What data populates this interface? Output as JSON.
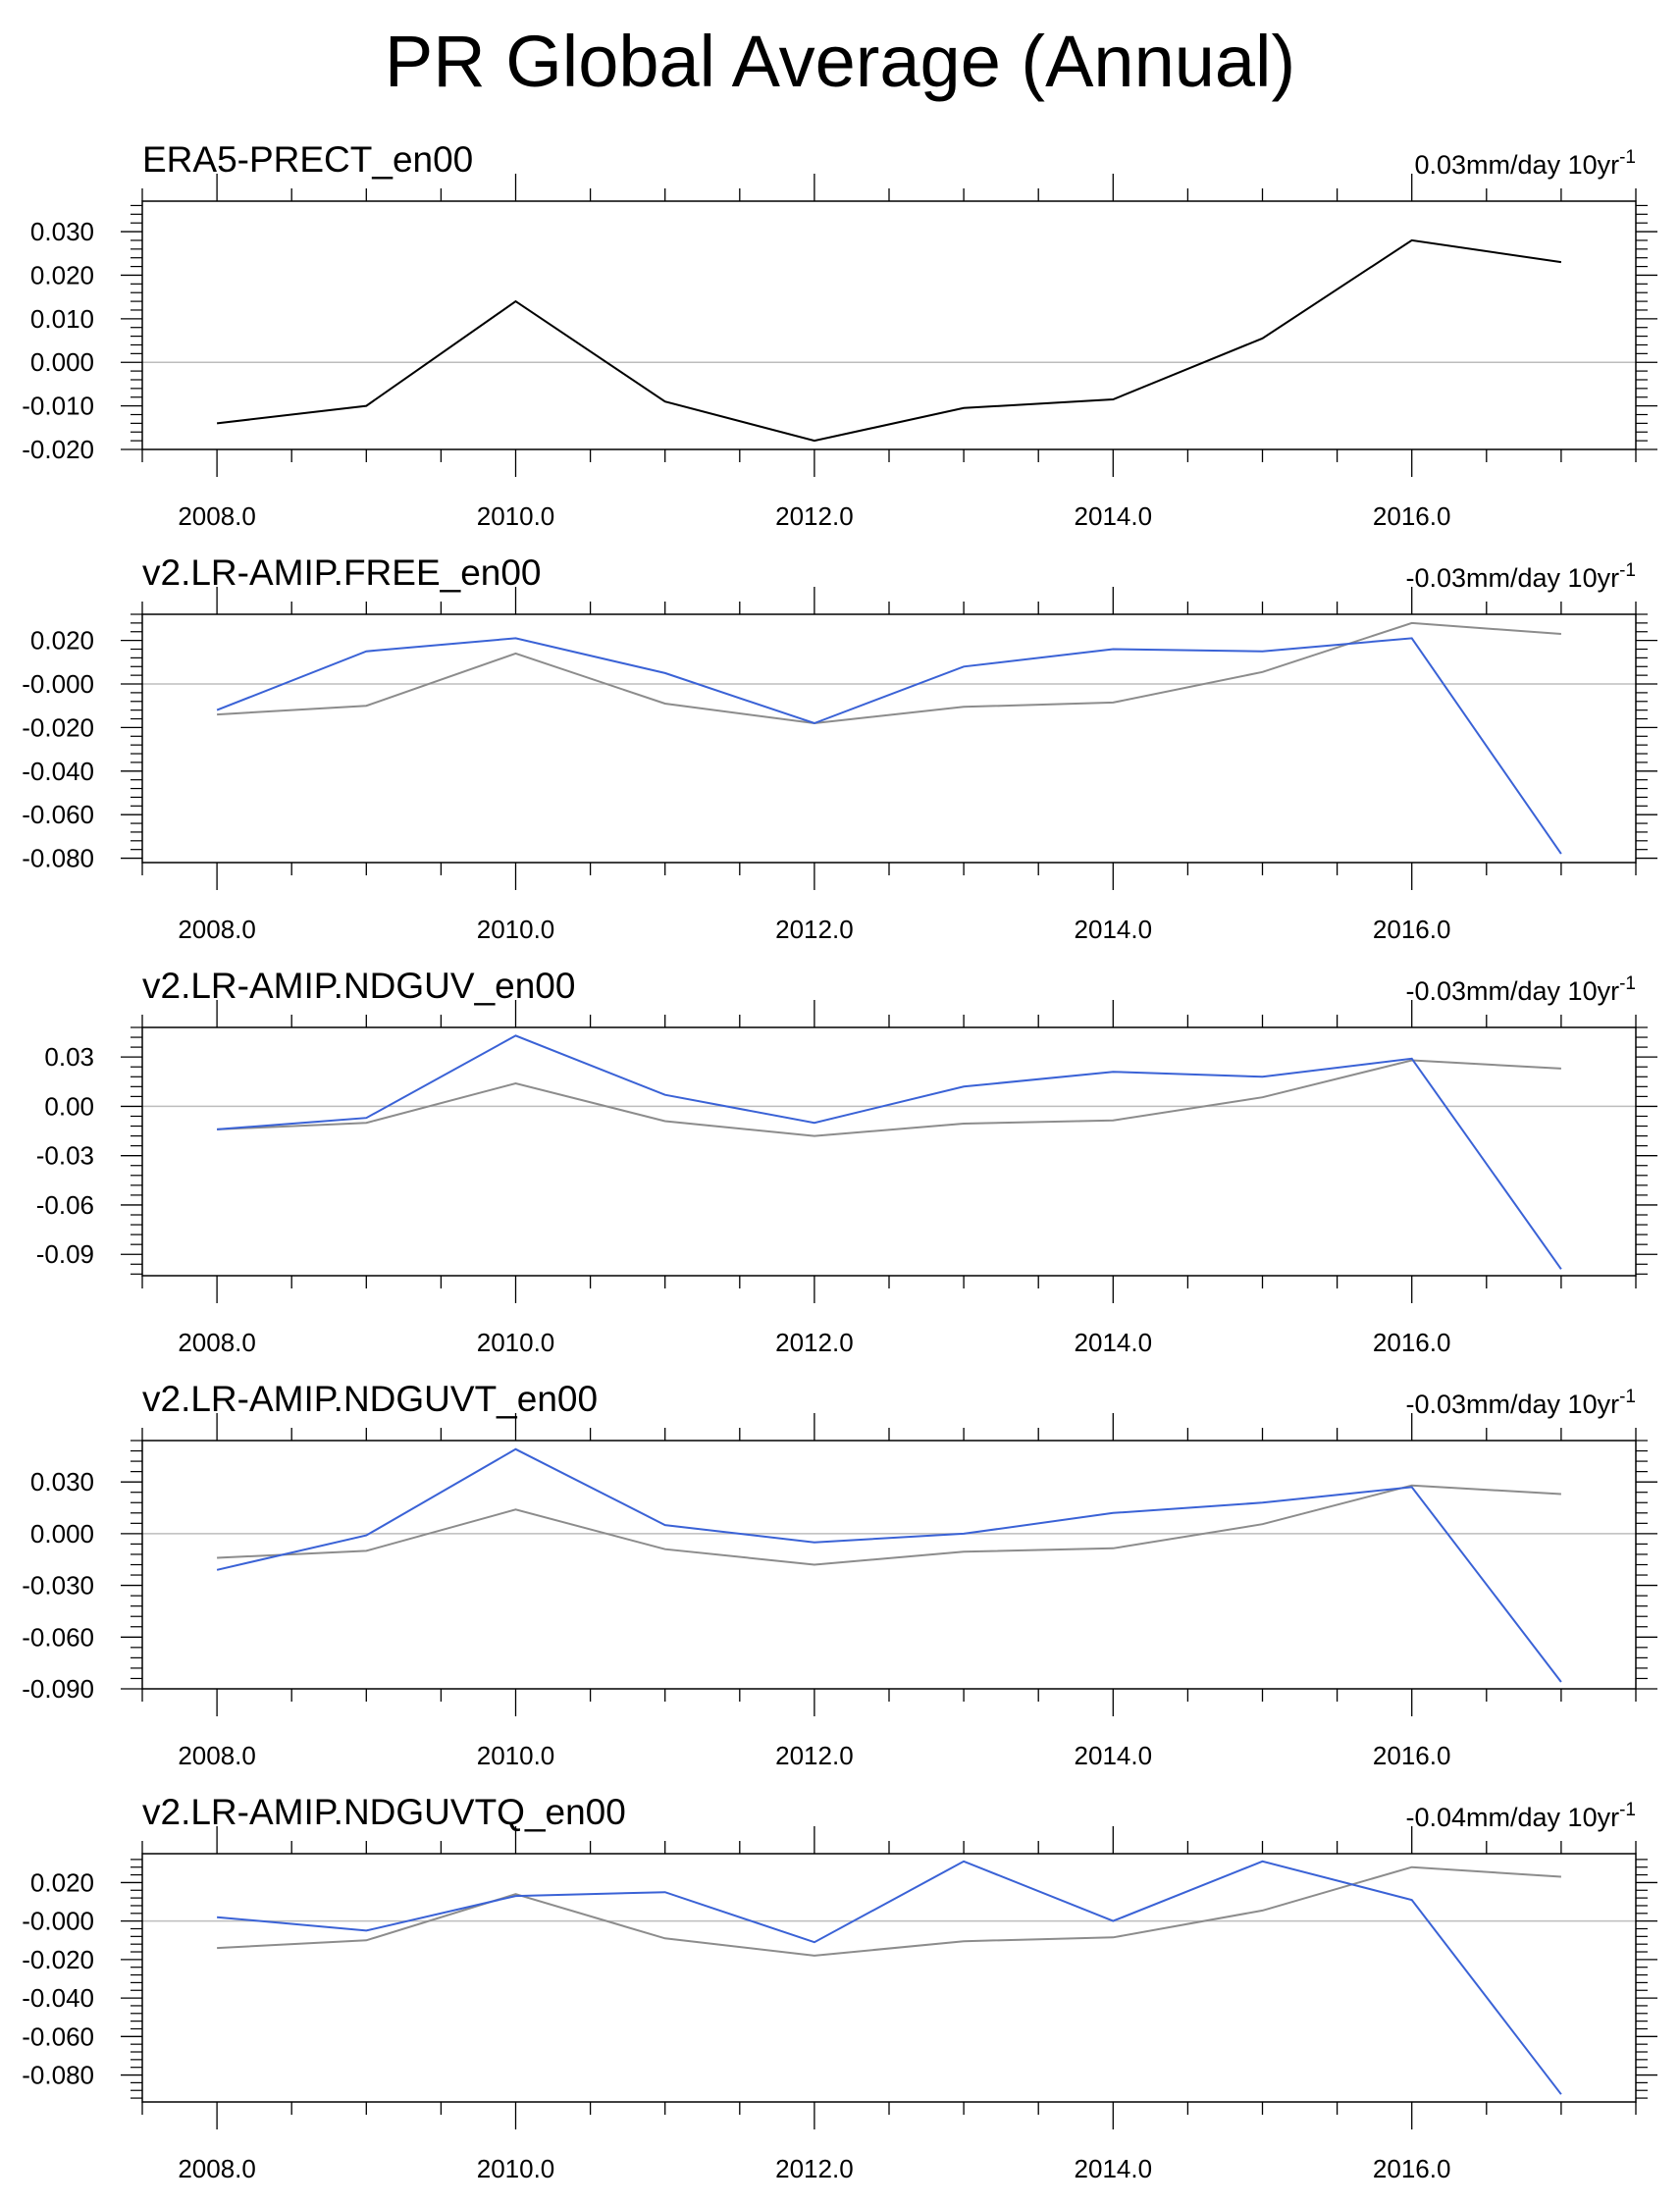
{
  "title": "PR Global Average (Annual)",
  "colors": {
    "reference": "#000000",
    "reference_overlay": "#8c8c8c",
    "model": "#3a62d6",
    "zero_line": "#bdbdbd"
  },
  "chart_data": [
    {
      "type": "line",
      "title": "ERA5-PRECT_en00",
      "trend": {
        "value": "0.03mm/day 10yr",
        "sup": "-1"
      },
      "x": [
        2008,
        2009,
        2010,
        2011,
        2012,
        2013,
        2014,
        2015,
        2016,
        2017
      ],
      "xticks": [
        "2008.0",
        "2010.0",
        "2012.0",
        "2014.0",
        "2016.0"
      ],
      "xlim": [
        2007.5,
        2017.5
      ],
      "ylim": [
        -0.02,
        0.037
      ],
      "yticks": [
        -0.02,
        -0.01,
        0.0,
        0.01,
        0.02,
        0.03
      ],
      "yticklabels": [
        "-0.020",
        "-0.010",
        "0.000",
        "0.010",
        "0.020",
        "0.030"
      ],
      "series": [
        {
          "name": "ERA5-PRECT_en00",
          "role": "reference",
          "values": [
            -0.014,
            -0.01,
            0.014,
            -0.009,
            -0.018,
            -0.0105,
            -0.0085,
            0.0055,
            0.028,
            0.023
          ]
        }
      ]
    },
    {
      "type": "line",
      "title": "v2.LR-AMIP.FREE_en00",
      "trend": {
        "value": "-0.03mm/day 10yr",
        "sup": "-1"
      },
      "x": [
        2008,
        2009,
        2010,
        2011,
        2012,
        2013,
        2014,
        2015,
        2016,
        2017
      ],
      "xticks": [
        "2008.0",
        "2010.0",
        "2012.0",
        "2014.0",
        "2016.0"
      ],
      "xlim": [
        2007.5,
        2017.5
      ],
      "ylim": [
        -0.082,
        0.032
      ],
      "yticks": [
        -0.08,
        -0.06,
        -0.04,
        -0.02,
        0.0,
        0.02
      ],
      "yticklabels": [
        "-0.080",
        "-0.060",
        "-0.040",
        "-0.020",
        "-0.000",
        "0.020"
      ],
      "series": [
        {
          "name": "ERA5-PRECT_en00",
          "role": "reference_overlay",
          "values": [
            -0.014,
            -0.01,
            0.014,
            -0.009,
            -0.018,
            -0.0105,
            -0.0085,
            0.0055,
            0.028,
            0.023
          ]
        },
        {
          "name": "v2.LR-AMIP.FREE_en00",
          "role": "model",
          "values": [
            -0.012,
            0.015,
            0.021,
            0.005,
            -0.018,
            0.008,
            0.016,
            0.015,
            0.021,
            -0.078
          ]
        }
      ]
    },
    {
      "type": "line",
      "title": "v2.LR-AMIP.NDGUV_en00",
      "trend": {
        "value": "-0.03mm/day 10yr",
        "sup": "-1"
      },
      "x": [
        2008,
        2009,
        2010,
        2011,
        2012,
        2013,
        2014,
        2015,
        2016,
        2017
      ],
      "xticks": [
        "2008.0",
        "2010.0",
        "2012.0",
        "2014.0",
        "2016.0"
      ],
      "xlim": [
        2007.5,
        2017.5
      ],
      "ylim": [
        -0.103,
        0.048
      ],
      "yticks": [
        -0.09,
        -0.06,
        -0.03,
        0.0,
        0.03
      ],
      "yticklabels": [
        "-0.09",
        "-0.06",
        "-0.03",
        "0.00",
        "0.03"
      ],
      "series": [
        {
          "name": "ERA5-PRECT_en00",
          "role": "reference_overlay",
          "values": [
            -0.014,
            -0.01,
            0.014,
            -0.009,
            -0.018,
            -0.0105,
            -0.0085,
            0.0055,
            0.028,
            0.023
          ]
        },
        {
          "name": "v2.LR-AMIP.NDGUV_en00",
          "role": "model",
          "values": [
            -0.014,
            -0.007,
            0.043,
            0.007,
            -0.01,
            0.012,
            0.021,
            0.018,
            0.029,
            -0.099
          ]
        }
      ]
    },
    {
      "type": "line",
      "title": "v2.LR-AMIP.NDGUVT_en00",
      "trend": {
        "value": "-0.03mm/day 10yr",
        "sup": "-1"
      },
      "x": [
        2008,
        2009,
        2010,
        2011,
        2012,
        2013,
        2014,
        2015,
        2016,
        2017
      ],
      "xticks": [
        "2008.0",
        "2010.0",
        "2012.0",
        "2014.0",
        "2016.0"
      ],
      "xlim": [
        2007.5,
        2017.5
      ],
      "ylim": [
        -0.09,
        0.054
      ],
      "yticks": [
        -0.09,
        -0.06,
        -0.03,
        0.0,
        0.03
      ],
      "yticklabels": [
        "-0.090",
        "-0.060",
        "-0.030",
        "0.000",
        "0.030"
      ],
      "series": [
        {
          "name": "ERA5-PRECT_en00",
          "role": "reference_overlay",
          "values": [
            -0.014,
            -0.01,
            0.014,
            -0.009,
            -0.018,
            -0.0105,
            -0.0085,
            0.0055,
            0.028,
            0.023
          ]
        },
        {
          "name": "v2.LR-AMIP.NDGUVT_en00",
          "role": "model",
          "values": [
            -0.021,
            -0.001,
            0.049,
            0.005,
            -0.005,
            0.0,
            0.012,
            0.018,
            0.027,
            -0.086
          ]
        }
      ]
    },
    {
      "type": "line",
      "title": "v2.LR-AMIP.NDGUVTQ_en00",
      "trend": {
        "value": "-0.04mm/day 10yr",
        "sup": "-1"
      },
      "x": [
        2008,
        2009,
        2010,
        2011,
        2012,
        2013,
        2014,
        2015,
        2016,
        2017
      ],
      "xticks": [
        "2008.0",
        "2010.0",
        "2012.0",
        "2014.0",
        "2016.0"
      ],
      "xlim": [
        2007.5,
        2017.5
      ],
      "ylim": [
        -0.094,
        0.035
      ],
      "yticks": [
        -0.08,
        -0.06,
        -0.04,
        -0.02,
        0.0,
        0.02
      ],
      "yticklabels": [
        "-0.080",
        "-0.060",
        "-0.040",
        "-0.020",
        "-0.000",
        "0.020"
      ],
      "series": [
        {
          "name": "ERA5-PRECT_en00",
          "role": "reference_overlay",
          "values": [
            -0.014,
            -0.01,
            0.014,
            -0.009,
            -0.018,
            -0.0105,
            -0.0085,
            0.0055,
            0.028,
            0.023
          ]
        },
        {
          "name": "v2.LR-AMIP.NDGUVTQ_en00",
          "role": "model",
          "values": [
            0.002,
            -0.005,
            0.013,
            0.015,
            -0.011,
            0.031,
            0.0,
            0.031,
            0.011,
            -0.09
          ]
        }
      ]
    }
  ]
}
